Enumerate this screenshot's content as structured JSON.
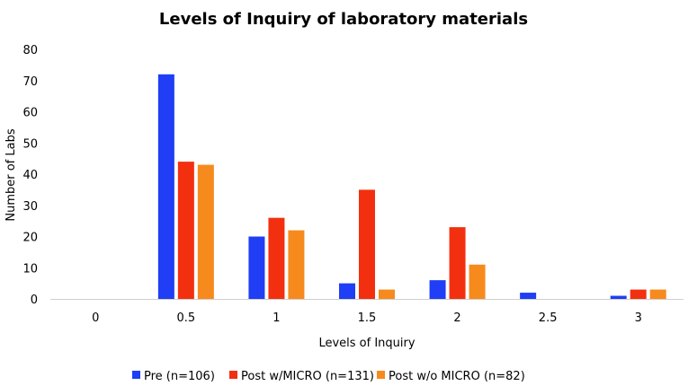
{
  "chart_data": {
    "type": "bar",
    "title": "Levels of Inquiry of laboratory materials",
    "xlabel": "Levels of Inquiry",
    "ylabel": "Number of Labs",
    "categories": [
      "0",
      "0.5",
      "1",
      "1.5",
      "2",
      "2.5",
      "3"
    ],
    "ylim": [
      0,
      80
    ],
    "yticks": [
      0,
      10,
      20,
      30,
      40,
      50,
      60,
      70,
      80
    ],
    "grid": false,
    "legend_position": "bottom",
    "series": [
      {
        "name": "Pre (n=106)",
        "color": "#1f3ef5",
        "values": [
          0,
          72,
          20,
          5,
          6,
          2,
          1
        ]
      },
      {
        "name": "Post w/MICRO (n=131)",
        "color": "#f2300f",
        "values": [
          0,
          44,
          26,
          35,
          23,
          0,
          3
        ]
      },
      {
        "name": "Post w/o MICRO (n=82)",
        "color": "#f78a1d",
        "values": [
          0,
          43,
          22,
          3,
          11,
          0,
          3
        ]
      }
    ]
  }
}
